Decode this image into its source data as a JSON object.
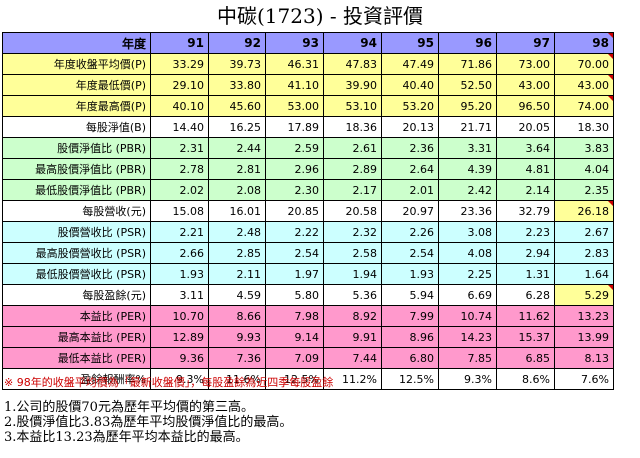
{
  "title": "中碳(1723) -  投資評價",
  "header": {
    "label": "年度",
    "years": [
      "91",
      "92",
      "93",
      "94",
      "95",
      "96",
      "97",
      "98"
    ]
  },
  "rows": [
    {
      "label": "年度收盤平均價(P)",
      "values": [
        "33.29",
        "39.73",
        "46.31",
        "47.83",
        "47.49",
        "71.86",
        "73.00",
        "70.00"
      ]
    },
    {
      "label": "年度最低價(P)",
      "values": [
        "29.10",
        "33.80",
        "41.10",
        "39.90",
        "40.40",
        "52.50",
        "43.00",
        "43.00"
      ]
    },
    {
      "label": "年度最高價(P)",
      "values": [
        "40.10",
        "45.60",
        "53.00",
        "53.10",
        "53.20",
        "95.20",
        "96.50",
        "74.00"
      ]
    },
    {
      "label": "每股淨值(B)",
      "values": [
        "14.40",
        "16.25",
        "17.89",
        "18.36",
        "20.13",
        "21.71",
        "20.05",
        "18.30"
      ]
    },
    {
      "label": "股價淨值比 (PBR)",
      "values": [
        "2.31",
        "2.44",
        "2.59",
        "2.61",
        "2.36",
        "3.31",
        "3.64",
        "3.83"
      ]
    },
    {
      "label": "最高股價淨值比 (PBR)",
      "values": [
        "2.78",
        "2.81",
        "2.96",
        "2.89",
        "2.64",
        "4.39",
        "4.81",
        "4.04"
      ]
    },
    {
      "label": "最低股價淨值比 (PBR)",
      "values": [
        "2.02",
        "2.08",
        "2.30",
        "2.17",
        "2.01",
        "2.42",
        "2.14",
        "2.35"
      ]
    },
    {
      "label": "每股營收(元)",
      "values": [
        "15.08",
        "16.01",
        "20.85",
        "20.58",
        "20.97",
        "23.36",
        "32.79",
        "26.18"
      ]
    },
    {
      "label": "股價營收比 (PSR)",
      "values": [
        "2.21",
        "2.48",
        "2.22",
        "2.32",
        "2.26",
        "3.08",
        "2.23",
        "2.67"
      ]
    },
    {
      "label": "最高股價營收比 (PSR)",
      "values": [
        "2.66",
        "2.85",
        "2.54",
        "2.58",
        "2.54",
        "4.08",
        "2.94",
        "2.83"
      ]
    },
    {
      "label": "最低股價營收比 (PSR)",
      "values": [
        "1.93",
        "2.11",
        "1.97",
        "1.94",
        "1.93",
        "2.25",
        "1.31",
        "1.64"
      ]
    },
    {
      "label": "每股盈餘(元)",
      "values": [
        "3.11",
        "4.59",
        "5.80",
        "5.36",
        "5.94",
        "6.69",
        "6.28",
        "5.29"
      ]
    },
    {
      "label": "本益比 (PER)",
      "values": [
        "10.70",
        "8.66",
        "7.98",
        "8.92",
        "7.99",
        "10.74",
        "11.62",
        "13.23"
      ]
    },
    {
      "label": "最高本益比 (PER)",
      "values": [
        "12.89",
        "9.93",
        "9.14",
        "9.91",
        "8.96",
        "14.23",
        "15.37",
        "13.99"
      ]
    },
    {
      "label": "最低本益比 (PER)",
      "values": [
        "9.36",
        "7.36",
        "7.09",
        "7.44",
        "6.80",
        "7.85",
        "6.85",
        "8.13"
      ]
    },
    {
      "label": "盈餘報酬率%",
      "values": [
        "9.3%",
        "11.6%",
        "12.5%",
        "11.2%",
        "12.5%",
        "9.3%",
        "8.6%",
        "7.6%"
      ]
    }
  ],
  "row_colors": {
    "yellow": "#ffff99",
    "white": "#ffffff",
    "green": "#ccffcc",
    "cyan": "#ccffff",
    "pink": "#ff99cc",
    "header": "#9999ff",
    "note": "#cc0000"
  },
  "note": "※ 98年的收盤平均價為「最新收盤價」，每股盈餘為近四季每股盈餘",
  "summary": [
    "1.公司的股價70元為歷年平均價的第三高。",
    "2.股價淨值比3.83為歷年平均股價淨值比的最高。",
    "3.本益比13.23為歷年平均本益比的最高。"
  ]
}
